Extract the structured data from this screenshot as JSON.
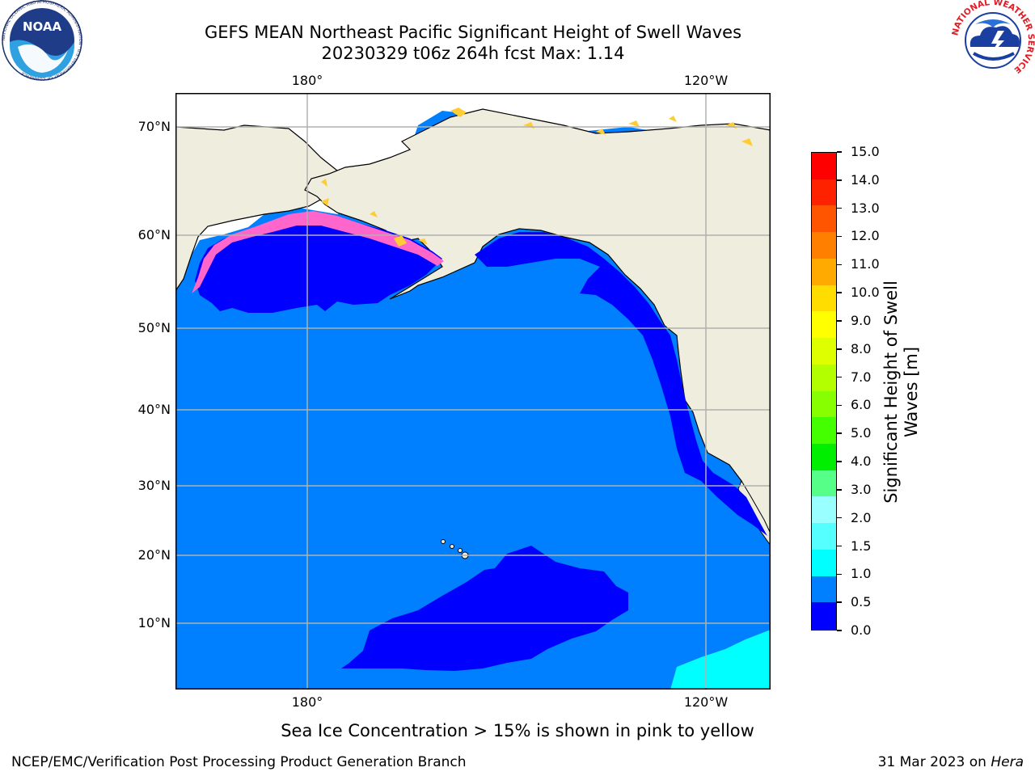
{
  "title": {
    "line1": "GEFS MEAN Northeast Pacific Significant Height of Swell Waves",
    "line2": "20230329 t06z 264h fcst   Max: 1.14"
  },
  "logos": {
    "noaa_text": "NOAA",
    "noaa_ring_text": "NATIONAL OCEANIC AND ATMOSPHERIC ADMINISTRATION · U.S. DEPARTMENT OF COMMERCE",
    "nws_ring_text": "NATIONAL WEATHER SERVICE"
  },
  "map": {
    "lon_top_labels": [
      "180°",
      "120°W"
    ],
    "lon_bottom_labels": [
      "180°",
      "120°W"
    ],
    "lat_labels": [
      "70°N",
      "60°N",
      "50°N",
      "40°N",
      "30°N",
      "20°N",
      "10°N"
    ],
    "colors": {
      "land": "#efedde",
      "ice_free": "#ffffff",
      "ocean_0_05": "#0000ff",
      "ocean_05_10": "#007fff",
      "ocean_10_15": "#00ffff",
      "ice_pink": "#ff66cc",
      "ice_yellow": "#ffcc33",
      "grid": "#b0b0b0"
    }
  },
  "colorbar": {
    "title": "Significant Height of Swell Waves [m]",
    "title_line1": "Significant Height of Swell",
    "title_line2": "Waves [m]",
    "labels": [
      "15.0",
      "14.0",
      "13.0",
      "12.0",
      "11.0",
      "10.0",
      "9.0",
      "8.0",
      "7.0",
      "6.0",
      "5.0",
      "4.0",
      "3.0",
      "2.0",
      "1.5",
      "1.0",
      "0.5",
      "0.0"
    ],
    "colors_top_to_bottom": [
      "#ff0000",
      "#ff2200",
      "#ff5500",
      "#ff8000",
      "#ffaa00",
      "#ffdd00",
      "#ffff00",
      "#ddff00",
      "#b3ff00",
      "#88ff00",
      "#44ff00",
      "#00ee00",
      "#55ff88",
      "#99ffff",
      "#55ffff",
      "#00ffff",
      "#0080ff",
      "#0000ff"
    ]
  },
  "caption": "Sea Ice Concentration > 15% is shown in pink to yellow",
  "footer": {
    "left": "NCEP/EMC/Verification Post Processing Product Generation Branch",
    "right_prefix": "31 Mar 2023 on ",
    "right_system": "Hera"
  }
}
